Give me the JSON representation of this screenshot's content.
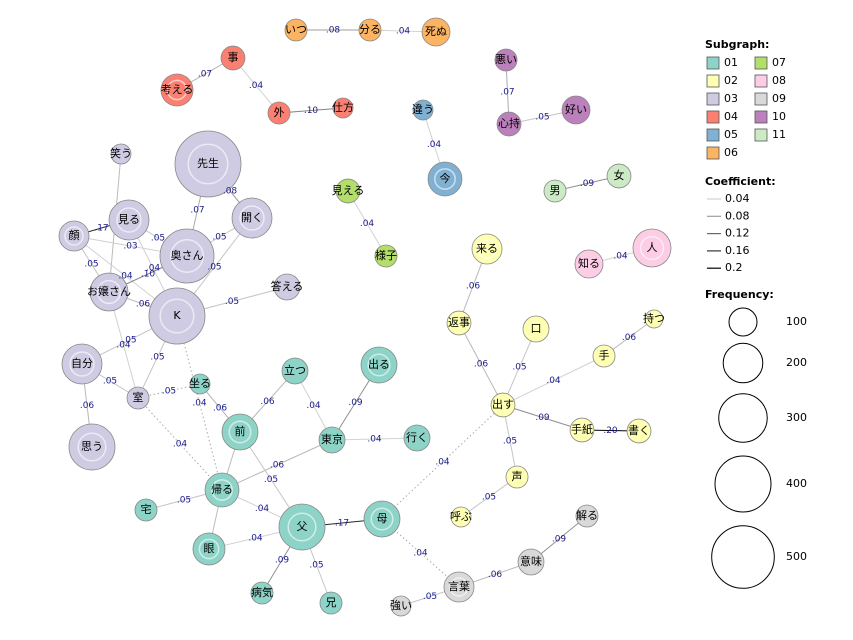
{
  "nodes": [
    {
      "label": "いつ",
      "group": 5,
      "frequency": 62
    },
    {
      "label": "分る",
      "group": 5,
      "frequency": 62
    },
    {
      "label": "死ぬ",
      "group": 5,
      "frequency": 100
    },
    {
      "label": "事",
      "group": 3,
      "frequency": 73
    },
    {
      "label": "考える",
      "group": 3,
      "frequency": 131
    },
    {
      "label": "外",
      "group": 3,
      "frequency": 62
    },
    {
      "label": "仕方",
      "group": 3,
      "frequency": 51
    },
    {
      "label": "悪い",
      "group": 9,
      "frequency": 62
    },
    {
      "label": "心持",
      "group": 9,
      "frequency": 73
    },
    {
      "label": "好い",
      "group": 9,
      "frequency": 100
    },
    {
      "label": "違う",
      "group": 4,
      "frequency": 51
    },
    {
      "label": "今",
      "group": 4,
      "frequency": 147
    },
    {
      "label": "男",
      "group": 10,
      "frequency": 62
    },
    {
      "label": "女",
      "group": 10,
      "frequency": 73
    },
    {
      "label": "見える",
      "group": 6,
      "frequency": 73
    },
    {
      "label": "様子",
      "group": 6,
      "frequency": 62
    },
    {
      "label": "知る",
      "group": 7,
      "frequency": 100
    },
    {
      "label": "人",
      "group": 7,
      "frequency": 184
    },
    {
      "label": "先生",
      "group": 2,
      "frequency": 556
    },
    {
      "label": "開く",
      "group": 2,
      "frequency": 204
    },
    {
      "label": "笑う",
      "group": 2,
      "frequency": 51
    },
    {
      "label": "見る",
      "group": 2,
      "frequency": 204
    },
    {
      "label": "顔",
      "group": 2,
      "frequency": 115
    },
    {
      "label": "奥さん",
      "group": 2,
      "frequency": 372
    },
    {
      "label": "お嬢さん",
      "group": 2,
      "frequency": 184
    },
    {
      "label": "K",
      "group": 2,
      "frequency": 400
    },
    {
      "label": "答える",
      "group": 2,
      "frequency": 86
    },
    {
      "label": "自分",
      "group": 2,
      "frequency": 204
    },
    {
      "label": "室",
      "group": 2,
      "frequency": 62
    },
    {
      "label": "思う",
      "group": 2,
      "frequency": 270
    },
    {
      "label": "立つ",
      "group": 0,
      "frequency": 86
    },
    {
      "label": "出る",
      "group": 0,
      "frequency": 165
    },
    {
      "label": "坐る",
      "group": 0,
      "frequency": 51
    },
    {
      "label": "前",
      "group": 0,
      "frequency": 165
    },
    {
      "label": "東京",
      "group": 0,
      "frequency": 86
    },
    {
      "label": "行く",
      "group": 0,
      "frequency": 86
    },
    {
      "label": "帰る",
      "group": 0,
      "frequency": 147
    },
    {
      "label": "宅",
      "group": 0,
      "frequency": 62
    },
    {
      "label": "父",
      "group": 0,
      "frequency": 270
    },
    {
      "label": "母",
      "group": 0,
      "frequency": 165
    },
    {
      "label": "眼",
      "group": 0,
      "frequency": 131
    },
    {
      "label": "病気",
      "group": 0,
      "frequency": 62
    },
    {
      "label": "兄",
      "group": 0,
      "frequency": 62
    },
    {
      "label": "来る",
      "group": 1,
      "frequency": 115
    },
    {
      "label": "返事",
      "group": 1,
      "frequency": 73
    },
    {
      "label": "口",
      "group": 1,
      "frequency": 86
    },
    {
      "label": "持つ",
      "group": 1,
      "frequency": 41
    },
    {
      "label": "手",
      "group": 1,
      "frequency": 62
    },
    {
      "label": "出す",
      "group": 1,
      "frequency": 73
    },
    {
      "label": "手紙",
      "group": 1,
      "frequency": 73
    },
    {
      "label": "書く",
      "group": 1,
      "frequency": 73
    },
    {
      "label": "声",
      "group": 1,
      "frequency": 62
    },
    {
      "label": "呼ぶ",
      "group": 1,
      "frequency": 51
    },
    {
      "label": "解る",
      "group": 8,
      "frequency": 62
    },
    {
      "label": "意味",
      "group": 8,
      "frequency": 86
    },
    {
      "label": "言葉",
      "group": 8,
      "frequency": 115
    },
    {
      "label": "強い",
      "group": 8,
      "frequency": 51
    }
  ],
  "edges": [
    {
      "from": 0,
      "to": 1,
      "coef": {
        "value": 0.08,
        "label": ".08"
      }
    },
    {
      "from": 1,
      "to": 2,
      "coef": {
        "value": 0.04,
        "label": ".04"
      }
    },
    {
      "from": 3,
      "to": 4,
      "coef": {
        "value": 0.07,
        "label": ".07"
      }
    },
    {
      "from": 3,
      "to": 5,
      "coef": {
        "value": 0.04,
        "label": ".04"
      }
    },
    {
      "from": 5,
      "to": 6,
      "coef": {
        "value": 0.1,
        "label": ".10"
      }
    },
    {
      "from": 7,
      "to": 8,
      "coef": {
        "value": 0.07,
        "label": ".07"
      }
    },
    {
      "from": 8,
      "to": 9,
      "coef": {
        "value": 0.05,
        "label": ".05"
      }
    },
    {
      "from": 10,
      "to": 11,
      "coef": {
        "value": 0.04,
        "label": ".04"
      }
    },
    {
      "from": 12,
      "to": 13,
      "coef": {
        "value": 0.09,
        "label": ".09"
      }
    },
    {
      "from": 14,
      "to": 15,
      "coef": {
        "value": 0.04,
        "label": ".04"
      }
    },
    {
      "from": 16,
      "to": 17,
      "coef": {
        "value": 0.04,
        "label": ".04"
      }
    },
    {
      "from": 18,
      "to": 23,
      "coef": {
        "value": 0.07,
        "label": ".07"
      }
    },
    {
      "from": 18,
      "to": 19,
      "coef": {
        "value": 0.08,
        "label": ".08"
      }
    },
    {
      "from": 19,
      "to": 23,
      "coef": {
        "value": 0.05,
        "label": ".05"
      }
    },
    {
      "from": 20,
      "to": 24
    },
    {
      "from": 22,
      "to": 21,
      "coef": {
        "value": 0.17,
        "label": ".17"
      }
    },
    {
      "from": 22,
      "to": 23,
      "coef": {
        "value": 0.03,
        "label": ".03"
      }
    },
    {
      "from": 22,
      "to": 25,
      "coef": {
        "value": 0.04,
        "label": ".04"
      }
    },
    {
      "from": 21,
      "to": 23,
      "coef": {
        "value": 0.05,
        "label": ".05"
      }
    },
    {
      "from": 21,
      "to": 25,
      "coef": {
        "value": 0.04,
        "label": ".04"
      }
    },
    {
      "from": 22,
      "to": 24,
      "coef": {
        "value": 0.05,
        "label": ".05"
      }
    },
    {
      "from": 24,
      "to": 23,
      "coef": {
        "value": 0.1,
        "label": ".10"
      }
    },
    {
      "from": 24,
      "to": 25,
      "coef": {
        "value": 0.06,
        "label": ".06"
      }
    },
    {
      "from": 19,
      "to": 25,
      "coef": {
        "value": 0.05,
        "label": ".05"
      }
    },
    {
      "from": 25,
      "to": 26,
      "coef": {
        "value": 0.05,
        "label": ".05"
      }
    },
    {
      "from": 25,
      "to": 27,
      "coef": {
        "value": 0.05,
        "label": ".05"
      }
    },
    {
      "from": 24,
      "to": 28,
      "coef": {
        "value": 0.04,
        "label": ".04"
      }
    },
    {
      "from": 25,
      "to": 28,
      "coef": {
        "value": 0.05,
        "label": ".05"
      }
    },
    {
      "from": 27,
      "to": 28,
      "coef": {
        "value": 0.05,
        "label": ".05"
      }
    },
    {
      "from": 27,
      "to": 29,
      "coef": {
        "value": 0.06,
        "label": ".06"
      }
    },
    {
      "from": 25,
      "to": 36,
      "coef": {
        "value": 0.04,
        "label": ".04"
      }
    },
    {
      "from": 28,
      "to": 36,
      "coef": {
        "value": 0.04,
        "label": ".04"
      }
    },
    {
      "from": 32,
      "to": 33,
      "coef": {
        "value": 0.06,
        "label": ".06"
      }
    },
    {
      "from": 30,
      "to": 33,
      "coef": {
        "value": 0.06,
        "label": ".06"
      }
    },
    {
      "from": 30,
      "to": 34,
      "coef": {
        "value": 0.04,
        "label": ".04"
      }
    },
    {
      "from": 31,
      "to": 34,
      "coef": {
        "value": 0.09,
        "label": ".09"
      }
    },
    {
      "from": 34,
      "to": 35,
      "coef": {
        "value": 0.04,
        "label": ".04"
      }
    },
    {
      "from": 36,
      "to": 34,
      "coef": {
        "value": 0.06,
        "label": ".06"
      }
    },
    {
      "from": 33,
      "to": 38,
      "coef": {
        "value": 0.05,
        "label": ".05"
      }
    },
    {
      "from": 37,
      "to": 36,
      "coef": {
        "value": 0.05,
        "label": ".05"
      }
    },
    {
      "from": 36,
      "to": 38,
      "coef": {
        "value": 0.04,
        "label": ".04"
      }
    },
    {
      "from": 40,
      "to": 38,
      "coef": {
        "value": 0.04,
        "label": ".04"
      }
    },
    {
      "from": 38,
      "to": 39,
      "coef": {
        "value": 0.17,
        "label": ".17"
      }
    },
    {
      "from": 38,
      "to": 41,
      "coef": {
        "value": 0.09,
        "label": ".09"
      }
    },
    {
      "from": 38,
      "to": 42,
      "coef": {
        "value": 0.05,
        "label": ".05"
      }
    },
    {
      "from": 28,
      "to": 32,
      "coef": {
        "value": 0.05,
        "label": ".05"
      }
    },
    {
      "from": 33,
      "to": 36
    },
    {
      "from": 36,
      "to": 40
    },
    {
      "from": 43,
      "to": 44,
      "coef": {
        "value": 0.06,
        "label": ".06"
      }
    },
    {
      "from": 44,
      "to": 48,
      "coef": {
        "value": 0.06,
        "label": ".06"
      }
    },
    {
      "from": 45,
      "to": 48,
      "coef": {
        "value": 0.05,
        "label": ".05"
      }
    },
    {
      "from": 47,
      "to": 48,
      "coef": {
        "value": 0.04,
        "label": ".04"
      }
    },
    {
      "from": 46,
      "to": 47,
      "coef": {
        "value": 0.06,
        "label": ".06"
      }
    },
    {
      "from": 48,
      "to": 49,
      "coef": {
        "value": 0.09,
        "label": ".09"
      }
    },
    {
      "from": 49,
      "to": 50,
      "coef": {
        "value": 0.2,
        "label": ".20"
      }
    },
    {
      "from": 48,
      "to": 51,
      "coef": {
        "value": 0.05,
        "label": ".05"
      }
    },
    {
      "from": 51,
      "to": 52,
      "coef": {
        "value": 0.05,
        "label": ".05"
      }
    },
    {
      "from": 48,
      "to": 39,
      "coef": {
        "value": 0.04,
        "label": ".04"
      }
    },
    {
      "from": 39,
      "to": 55,
      "coef": {
        "value": 0.04,
        "label": ".04"
      }
    },
    {
      "from": 55,
      "to": 54,
      "coef": {
        "value": 0.06,
        "label": ".06"
      }
    },
    {
      "from": 54,
      "to": 53,
      "coef": {
        "value": 0.09,
        "label": ".09"
      }
    },
    {
      "from": 56,
      "to": 55,
      "coef": {
        "value": 0.05,
        "label": ".05"
      }
    }
  ],
  "legend": {
    "subgraph_title": "Subgraph:",
    "subgraphs": [
      {
        "label": "01",
        "color": "#8dd3c7"
      },
      {
        "label": "02",
        "color": "#ffffb3"
      },
      {
        "label": "03",
        "color": "#cfcbe3"
      },
      {
        "label": "04",
        "color": "#fb8072"
      },
      {
        "label": "05",
        "color": "#80b1d3"
      },
      {
        "label": "06",
        "color": "#fdb462"
      },
      {
        "label": "07",
        "color": "#b3de69"
      },
      {
        "label": "08",
        "color": "#fccde5"
      },
      {
        "label": "09",
        "color": "#d9d9d9"
      },
      {
        "label": "10",
        "color": "#bc80bd"
      },
      {
        "label": "11",
        "color": "#ccebc5"
      }
    ],
    "coefficient_title": "Coefficient:",
    "coefficients": [
      0.04,
      0.08,
      0.12,
      0.16,
      0.2
    ],
    "frequency_title": "Frequency:",
    "frequencies": [
      100,
      200,
      300,
      400,
      500
    ]
  }
}
